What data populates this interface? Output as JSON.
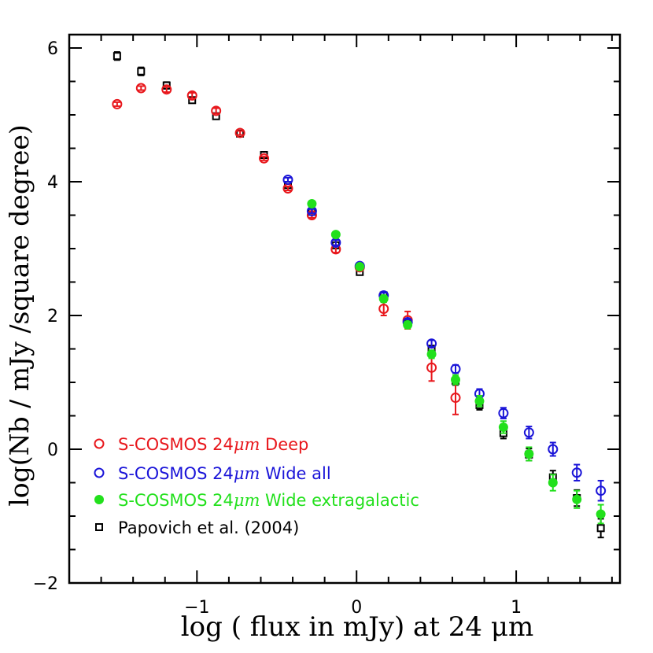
{
  "chart_data": {
    "type": "scatter",
    "title": "",
    "xlabel": "log ( flux in mJy)  at 24 μm",
    "ylabel": "log(Nb / mJy /square degree)",
    "xlim": [
      -1.8,
      1.65
    ],
    "ylim": [
      -2,
      6.2
    ],
    "x_ticks": [
      -1,
      0,
      1
    ],
    "x_tick_labels": [
      "−1",
      "0",
      "1"
    ],
    "y_ticks": [
      -2,
      0,
      2,
      4,
      6
    ],
    "y_tick_labels": [
      "−2",
      "0",
      "2",
      "4",
      "6"
    ],
    "grid": false,
    "legend_position": "bottom-left",
    "series": [
      {
        "name": "S-COSMOS 24μm Deep",
        "color": "#e8171c",
        "marker": "open-circle",
        "points": [
          {
            "x": -1.5,
            "y": 5.16,
            "err": 0.03
          },
          {
            "x": -1.35,
            "y": 5.4,
            "err": 0.03
          },
          {
            "x": -1.19,
            "y": 5.38,
            "err": 0.04
          },
          {
            "x": -1.03,
            "y": 5.29,
            "err": 0.04
          },
          {
            "x": -0.88,
            "y": 5.06,
            "err": 0.04
          },
          {
            "x": -0.73,
            "y": 4.73,
            "err": 0.03
          },
          {
            "x": -0.58,
            "y": 4.35,
            "err": 0.03
          },
          {
            "x": -0.43,
            "y": 3.9,
            "err": 0.03
          },
          {
            "x": -0.28,
            "y": 3.5,
            "err": 0.04
          },
          {
            "x": -0.13,
            "y": 2.99,
            "err": 0.05
          },
          {
            "x": 0.02,
            "y": 2.72,
            "err": 0.05
          },
          {
            "x": 0.17,
            "y": 2.1,
            "err": 0.1
          },
          {
            "x": 0.32,
            "y": 1.93,
            "err": 0.13
          },
          {
            "x": 0.47,
            "y": 1.22,
            "err": 0.2
          },
          {
            "x": 0.62,
            "y": 0.77,
            "err": 0.25
          }
        ]
      },
      {
        "name": "S-COSMOS 24μm Wide all",
        "color": "#1a14d8",
        "marker": "open-circle",
        "points": [
          {
            "x": -0.43,
            "y": 4.03,
            "err": 0.03
          },
          {
            "x": -0.28,
            "y": 3.56,
            "err": 0.03
          },
          {
            "x": -0.13,
            "y": 3.09,
            "err": 0.04
          },
          {
            "x": 0.02,
            "y": 2.74,
            "err": 0.04
          },
          {
            "x": 0.17,
            "y": 2.3,
            "err": 0.04
          },
          {
            "x": 0.32,
            "y": 1.9,
            "err": 0.04
          },
          {
            "x": 0.47,
            "y": 1.58,
            "err": 0.05
          },
          {
            "x": 0.62,
            "y": 1.2,
            "err": 0.06
          },
          {
            "x": 0.77,
            "y": 0.83,
            "err": 0.07
          },
          {
            "x": 0.92,
            "y": 0.54,
            "err": 0.08
          },
          {
            "x": 1.08,
            "y": 0.25,
            "err": 0.09
          },
          {
            "x": 1.23,
            "y": 0.0,
            "err": 0.1
          },
          {
            "x": 1.38,
            "y": -0.35,
            "err": 0.12
          },
          {
            "x": 1.53,
            "y": -0.62,
            "err": 0.15
          }
        ]
      },
      {
        "name": "S-COSMOS 24μm Wide extragalactic",
        "color": "#22e01c",
        "marker": "filled-circle",
        "points": [
          {
            "x": -0.28,
            "y": 3.67,
            "err": 0.03
          },
          {
            "x": -0.13,
            "y": 3.21,
            "err": 0.04
          },
          {
            "x": 0.02,
            "y": 2.73,
            "err": 0.04
          },
          {
            "x": 0.17,
            "y": 2.25,
            "err": 0.05
          },
          {
            "x": 0.32,
            "y": 1.86,
            "err": 0.05
          },
          {
            "x": 0.47,
            "y": 1.42,
            "err": 0.06
          },
          {
            "x": 0.62,
            "y": 1.04,
            "err": 0.07
          },
          {
            "x": 0.77,
            "y": 0.72,
            "err": 0.08
          },
          {
            "x": 0.92,
            "y": 0.33,
            "err": 0.09
          },
          {
            "x": 1.08,
            "y": -0.07,
            "err": 0.1
          },
          {
            "x": 1.23,
            "y": -0.5,
            "err": 0.12
          },
          {
            "x": 1.38,
            "y": -0.75,
            "err": 0.13
          },
          {
            "x": 1.53,
            "y": -0.97,
            "err": 0.14
          }
        ]
      },
      {
        "name": "Papovich et al. (2004)",
        "color": "#000000",
        "marker": "open-square",
        "points": [
          {
            "x": -1.5,
            "y": 5.88,
            "err": 0.06
          },
          {
            "x": -1.35,
            "y": 5.65,
            "err": 0.06
          },
          {
            "x": -1.19,
            "y": 5.44,
            "err": 0.05
          },
          {
            "x": -1.03,
            "y": 5.22,
            "err": 0.04
          },
          {
            "x": -0.88,
            "y": 4.98,
            "err": 0.04
          },
          {
            "x": -0.73,
            "y": 4.72,
            "err": 0.03
          },
          {
            "x": -0.58,
            "y": 4.4,
            "err": 0.03
          },
          {
            "x": -0.43,
            "y": 3.95,
            "err": 0.03
          },
          {
            "x": -0.28,
            "y": 3.55,
            "err": 0.03
          },
          {
            "x": -0.13,
            "y": 3.05,
            "err": 0.04
          },
          {
            "x": 0.02,
            "y": 2.65,
            "err": 0.04
          },
          {
            "x": 0.17,
            "y": 2.3,
            "err": 0.05
          },
          {
            "x": 0.32,
            "y": 1.88,
            "err": 0.05
          },
          {
            "x": 0.47,
            "y": 1.5,
            "err": 0.05
          },
          {
            "x": 0.62,
            "y": 1.02,
            "err": 0.06
          },
          {
            "x": 0.77,
            "y": 0.66,
            "err": 0.07
          },
          {
            "x": 0.92,
            "y": 0.24,
            "err": 0.08
          },
          {
            "x": 1.08,
            "y": -0.08,
            "err": 0.09
          },
          {
            "x": 1.23,
            "y": -0.42,
            "err": 0.1
          },
          {
            "x": 1.38,
            "y": -0.73,
            "err": 0.12
          },
          {
            "x": 1.53,
            "y": -1.18,
            "err": 0.14
          }
        ]
      }
    ],
    "legend": [
      {
        "label_prefix": "S-COSMOS 24",
        "label_unit": "μm",
        "label_suffix": " Deep",
        "series": 0
      },
      {
        "label_prefix": "S-COSMOS 24",
        "label_unit": "μm",
        "label_suffix": " Wide all",
        "series": 1
      },
      {
        "label_prefix": "S-COSMOS 24",
        "label_unit": "μm",
        "label_suffix": " Wide extragalactic",
        "series": 2
      },
      {
        "label_prefix": "Papovich et al. (2004)",
        "label_unit": "",
        "label_suffix": "",
        "series": 3
      }
    ]
  }
}
